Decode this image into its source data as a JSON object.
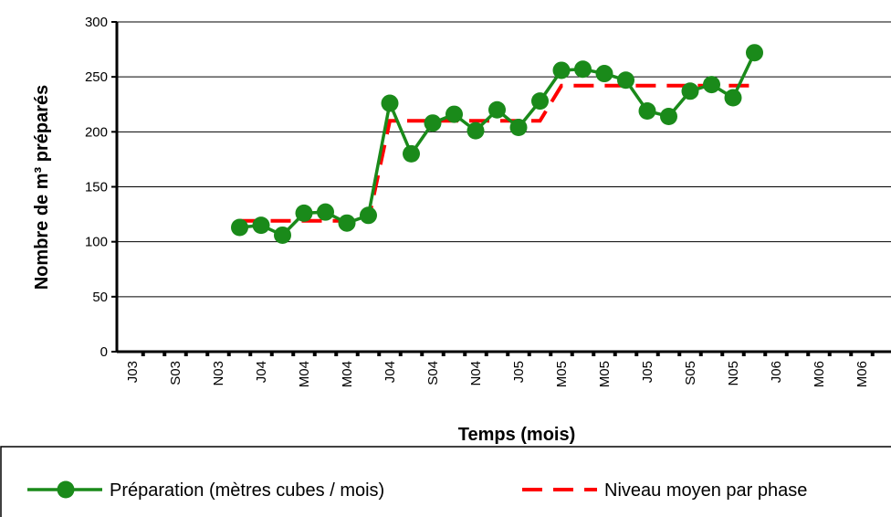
{
  "chart_data": {
    "type": "line",
    "x_label": "Temps (mois)",
    "y_label": "Nombre de m³ préparés",
    "categories": [
      "J03",
      null,
      "S03",
      null,
      "N03",
      null,
      "J04",
      null,
      "M04",
      null,
      "M04",
      null,
      "J04",
      null,
      "S04",
      null,
      "N04",
      null,
      "J05",
      null,
      "M05",
      null,
      "M05",
      null,
      "J05",
      null,
      "S05",
      null,
      "N05",
      null,
      "J06",
      null,
      "M06",
      null,
      "M06",
      null
    ],
    "series": [
      {
        "name": "Préparation (mètres cubes / mois)",
        "color": "#1a8a1a",
        "style": "solid-markers",
        "values": [
          null,
          null,
          null,
          null,
          null,
          113,
          115,
          106,
          126,
          127,
          117,
          124,
          226,
          180,
          208,
          216,
          201,
          220,
          204,
          228,
          256,
          257,
          253,
          247,
          219,
          214,
          237,
          243,
          231,
          272,
          null,
          null,
          null,
          null,
          null,
          null
        ]
      },
      {
        "name": "Niveau moyen par phase",
        "color": "#ff0000",
        "style": "dashed",
        "values": [
          null,
          null,
          null,
          null,
          null,
          119,
          119,
          119,
          119,
          119,
          119,
          119,
          210,
          210,
          210,
          210,
          210,
          210,
          210,
          210,
          242,
          242,
          242,
          242,
          242,
          242,
          242,
          242,
          242,
          242,
          null,
          null,
          null,
          null,
          null,
          null
        ]
      }
    ],
    "ylim": [
      0,
      300
    ],
    "yticks": [
      0,
      50,
      100,
      150,
      200,
      250,
      300
    ],
    "grid": true,
    "legend": "bottom"
  }
}
